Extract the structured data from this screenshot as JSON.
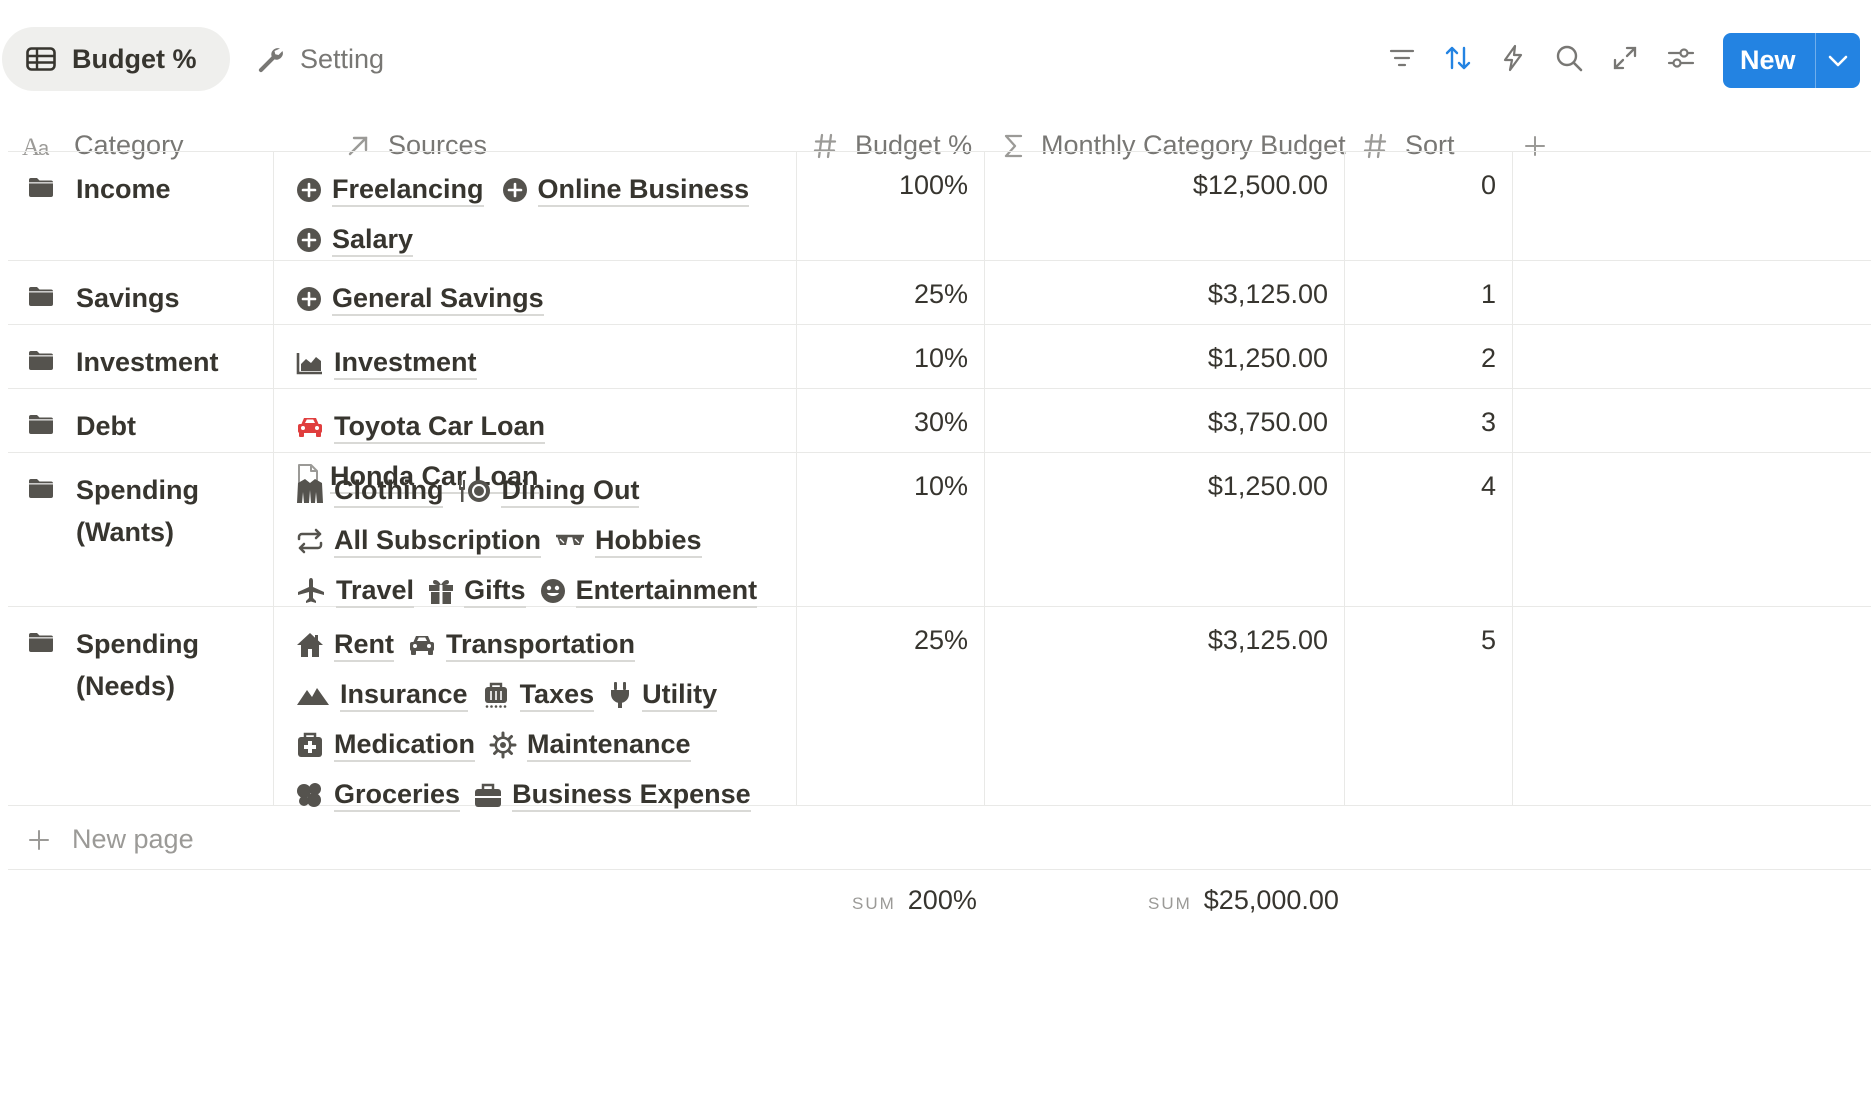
{
  "views": {
    "active": "Budget %",
    "inactive": "Setting"
  },
  "toolbar": {
    "icons": [
      "filter-icon",
      "sort-icon",
      "automation-icon",
      "search-icon",
      "expand-icon",
      "settings-icon"
    ],
    "new_label": "New"
  },
  "columns": {
    "category": "Category",
    "sources": "Sources",
    "budget_pct": "Budget %",
    "monthly": "Monthly Category Budget",
    "sort": "Sort"
  },
  "rows": [
    {
      "category": "Income",
      "sources": [
        {
          "label": "Freelancing",
          "icon": "plus-circle-icon"
        },
        {
          "label": "Online Business",
          "icon": "plus-circle-icon"
        },
        {
          "label": "Salary",
          "icon": "plus-circle-icon"
        }
      ],
      "budget_pct": "100%",
      "monthly": "$12,500.00",
      "sort": "0"
    },
    {
      "category": "Savings",
      "sources": [
        {
          "label": "General Savings",
          "icon": "plus-circle-icon"
        }
      ],
      "budget_pct": "25%",
      "monthly": "$3,125.00",
      "sort": "1"
    },
    {
      "category": "Investment",
      "sources": [
        {
          "label": "Investment",
          "icon": "chart-icon"
        }
      ],
      "budget_pct": "10%",
      "monthly": "$1,250.00",
      "sort": "2"
    },
    {
      "category": "Debt",
      "sources": [
        {
          "label": "Toyota Car Loan",
          "icon": "car-icon"
        },
        {
          "label": "Honda Car Loan",
          "icon": "page-icon"
        }
      ],
      "budget_pct": "30%",
      "monthly": "$3,750.00",
      "sort": "3"
    },
    {
      "category": "Spending (Wants)",
      "sources": [
        {
          "label": "Clothing",
          "icon": "jacket-icon"
        },
        {
          "label": "Dining Out",
          "icon": "dining-icon"
        },
        {
          "label": "All Subscription",
          "icon": "repeat-icon"
        },
        {
          "label": "Hobbies",
          "icon": "glasses-icon"
        },
        {
          "label": "Travel",
          "icon": "airplane-icon"
        },
        {
          "label": "Gifts",
          "icon": "gift-icon"
        },
        {
          "label": "Entertainment",
          "icon": "smile-icon"
        }
      ],
      "budget_pct": "10%",
      "monthly": "$1,250.00",
      "sort": "4"
    },
    {
      "category": "Spending (Needs)",
      "sources": [
        {
          "label": "Rent",
          "icon": "home-icon"
        },
        {
          "label": "Transportation",
          "icon": "car-icon"
        },
        {
          "label": "Insurance",
          "icon": "mountain-icon"
        },
        {
          "label": "Taxes",
          "icon": "receipt-icon"
        },
        {
          "label": "Utility",
          "icon": "plug-icon"
        },
        {
          "label": "Medication",
          "icon": "medkit-icon"
        },
        {
          "label": "Maintenance",
          "icon": "gear-icon"
        },
        {
          "label": "Groceries",
          "icon": "groceries-icon"
        },
        {
          "label": "Business Expense",
          "icon": "briefcase-icon"
        }
      ],
      "budget_pct": "25%",
      "monthly": "$3,125.00",
      "sort": "5"
    }
  ],
  "new_page": "New page",
  "sums": {
    "key": "SUM",
    "budget_pct": "200%",
    "monthly": "$25,000.00"
  },
  "colors": {
    "accent": "#2383e2",
    "car_red": "#e03e3e",
    "icon_gray": "#55534e"
  }
}
